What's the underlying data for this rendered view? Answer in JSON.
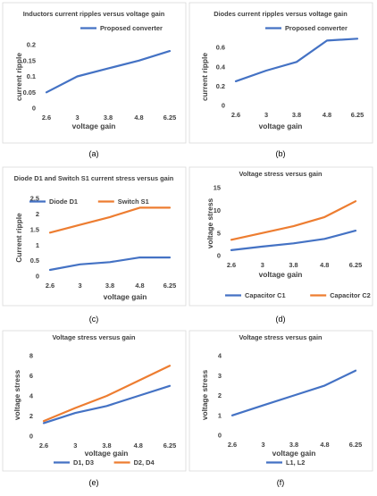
{
  "colors": {
    "blue": "#4472c4",
    "orange": "#ed7d31"
  },
  "chart_data": [
    {
      "id": "a",
      "type": "line",
      "title": "Inductors current ripples versus voltage gain",
      "xlabel": "voltage gain",
      "ylabel": "current ripple",
      "categories": [
        "2.6",
        "3",
        "3.8",
        "4.8",
        "6.25"
      ],
      "yticks": [
        "0",
        "0.05",
        "0.1",
        "0.15",
        "0.2"
      ],
      "ylim": [
        0,
        0.2
      ],
      "legend_position": "top",
      "series": [
        {
          "name": "Proposed converter",
          "color": "#4472c4",
          "values": [
            0.05,
            0.1,
            0.125,
            0.15,
            0.18
          ]
        }
      ],
      "caption": "(a)"
    },
    {
      "id": "b",
      "type": "line",
      "title": "Diodes current ripples versus voltage gain",
      "xlabel": "voltage gain",
      "ylabel": "current ripple",
      "categories": [
        "2.6",
        "3",
        "3.8",
        "4.8",
        "6.25"
      ],
      "yticks": [
        "0",
        "0.2",
        "0.4",
        "0.6"
      ],
      "ylim": [
        0,
        0.6
      ],
      "legend_position": "top",
      "series": [
        {
          "name": "Proposed converter",
          "color": "#4472c4",
          "values": [
            0.25,
            0.36,
            0.45,
            0.67,
            0.69
          ]
        }
      ],
      "caption": "(b)"
    },
    {
      "id": "c",
      "type": "line",
      "title": "Diode D1 and Switch S1 current stress versus gain",
      "xlabel": "voltage gain",
      "ylabel": "Current ripple",
      "categories": [
        "2.6",
        "3",
        "3.8",
        "4.8",
        "6.25"
      ],
      "yticks": [
        "0",
        "0.5",
        "1",
        "1.5",
        "2",
        "2.5"
      ],
      "ylim": [
        0,
        2.5
      ],
      "legend_position": "top",
      "series": [
        {
          "name": "Diode D1",
          "color": "#4472c4",
          "values": [
            0.2,
            0.38,
            0.45,
            0.6,
            0.6
          ]
        },
        {
          "name": "Switch S1",
          "color": "#ed7d31",
          "values": [
            1.4,
            1.65,
            1.9,
            2.2,
            2.2
          ]
        }
      ],
      "caption": "(c)"
    },
    {
      "id": "d",
      "type": "line",
      "title": "Voltage stress versus gain",
      "xlabel": "voltage gain",
      "ylabel": "voltage stress",
      "categories": [
        "2.6",
        "3",
        "3.8",
        "4.8",
        "6.25"
      ],
      "yticks": [
        "0",
        "5",
        "10",
        "15"
      ],
      "ylim": [
        0,
        15
      ],
      "legend_position": "bottom",
      "series": [
        {
          "name": "Capacitor C1",
          "color": "#4472c4",
          "values": [
            1.2,
            2.0,
            2.7,
            3.7,
            5.5
          ]
        },
        {
          "name": "Capacitor C2",
          "color": "#ed7d31",
          "values": [
            3.5,
            5.0,
            6.5,
            8.5,
            12.0
          ]
        }
      ],
      "caption": "(d)"
    },
    {
      "id": "e",
      "type": "line",
      "title": "Voltage stress versus gain",
      "xlabel": "voltage gain",
      "ylabel": "voltage stress",
      "categories": [
        "2.6",
        "3",
        "3.8",
        "4.8",
        "6.25"
      ],
      "yticks": [
        "0",
        "2",
        "4",
        "6",
        "8"
      ],
      "ylim": [
        0,
        8
      ],
      "legend_position": "bottom",
      "series": [
        {
          "name": "D1, D3",
          "color": "#4472c4",
          "values": [
            1.3,
            2.3,
            3.0,
            4.0,
            5.0
          ]
        },
        {
          "name": "D2, D4",
          "color": "#ed7d31",
          "values": [
            1.5,
            2.8,
            4.0,
            5.5,
            7.0
          ]
        }
      ],
      "caption": "(e)"
    },
    {
      "id": "f",
      "type": "line",
      "title": "Voltage stress versus gain",
      "xlabel": "voltage gain",
      "ylabel": "voltage stress",
      "categories": [
        "2.6",
        "3",
        "3.8",
        "4.8",
        "6.25"
      ],
      "yticks": [
        "0",
        "1",
        "2",
        "3",
        "4"
      ],
      "ylim": [
        0,
        4
      ],
      "legend_position": "bottom",
      "series": [
        {
          "name": "L1, L2",
          "color": "#4472c4",
          "values": [
            1.0,
            1.5,
            2.0,
            2.5,
            3.25
          ]
        }
      ],
      "caption": "(f)"
    }
  ]
}
